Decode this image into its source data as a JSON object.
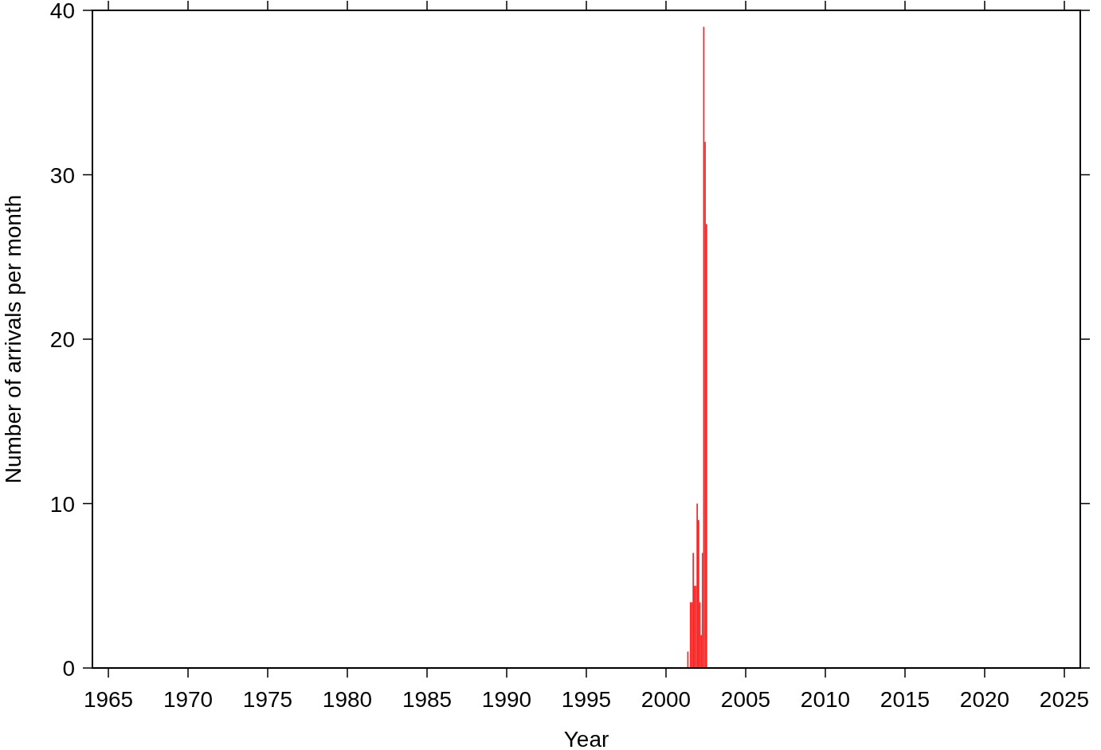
{
  "chart_data": {
    "type": "bar",
    "xlabel": "Year",
    "ylabel": "Number of arrivals per month",
    "x": [
      "2001-05",
      "2001-06",
      "2001-07",
      "2001-08",
      "2001-09",
      "2001-10",
      "2001-11",
      "2001-12",
      "2002-01",
      "2002-02",
      "2002-03",
      "2002-04",
      "2002-05",
      "2002-06",
      "2002-07"
    ],
    "values": [
      1,
      0,
      4,
      4,
      7,
      5,
      5,
      10,
      9,
      4,
      2,
      7,
      39,
      32,
      27
    ],
    "color": "#ff2020",
    "xlim": [
      "1964",
      "2026"
    ],
    "xticks": [
      "1965",
      "1970",
      "1975",
      "1980",
      "1985",
      "1990",
      "1995",
      "2000",
      "2005",
      "2010",
      "2015",
      "2020",
      "2025"
    ],
    "ylim": [
      0,
      40
    ],
    "yticks": [
      0,
      10,
      20,
      30,
      40
    ],
    "grid": false
  }
}
